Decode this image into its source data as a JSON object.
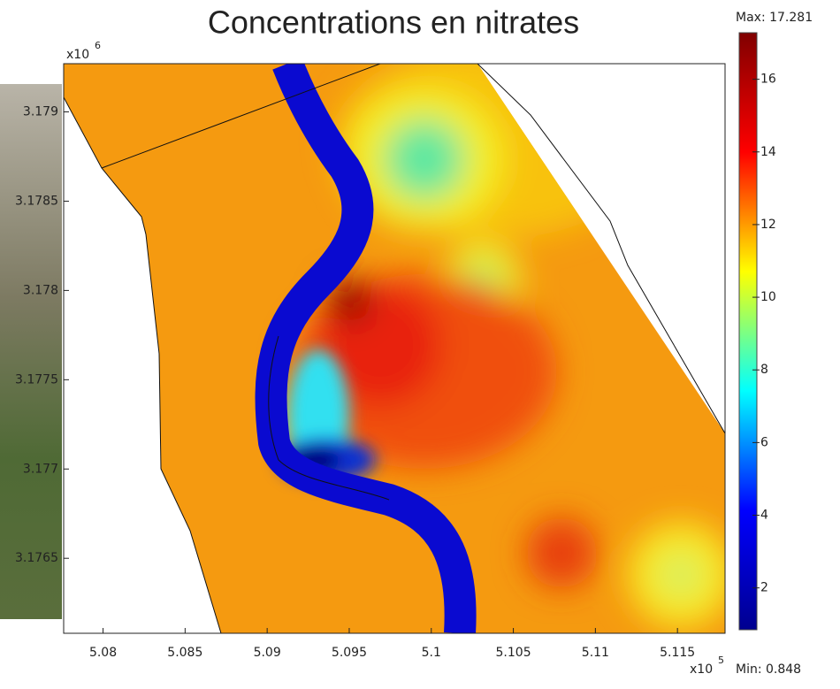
{
  "chart_data": {
    "type": "heatmap",
    "title": "Concentrations en nitrates",
    "xticks": [
      5.08,
      5.085,
      5.09,
      5.095,
      5.1,
      5.105,
      5.11,
      5.115
    ],
    "xlim": [
      5.0776,
      5.1179
    ],
    "x_multiplier": {
      "base": "x10",
      "exp": "5"
    },
    "yticks": [
      3.1765,
      3.177,
      3.1775,
      3.178,
      3.1785,
      3.179
    ],
    "ylim": [
      3.17608,
      3.17927
    ],
    "y_multiplier": {
      "base": "x10",
      "exp": "6"
    },
    "colorbar": {
      "ticks": [
        2,
        4,
        6,
        8,
        10,
        12,
        14,
        16
      ],
      "clim": [
        0.848,
        17.281
      ],
      "max_label": "Max: 17.281",
      "min_label": "Min: 0.848",
      "colormap": [
        "#00008f",
        "#0000ff",
        "#00ffff",
        "#ffff00",
        "#ff0000",
        "#800000"
      ]
    }
  }
}
